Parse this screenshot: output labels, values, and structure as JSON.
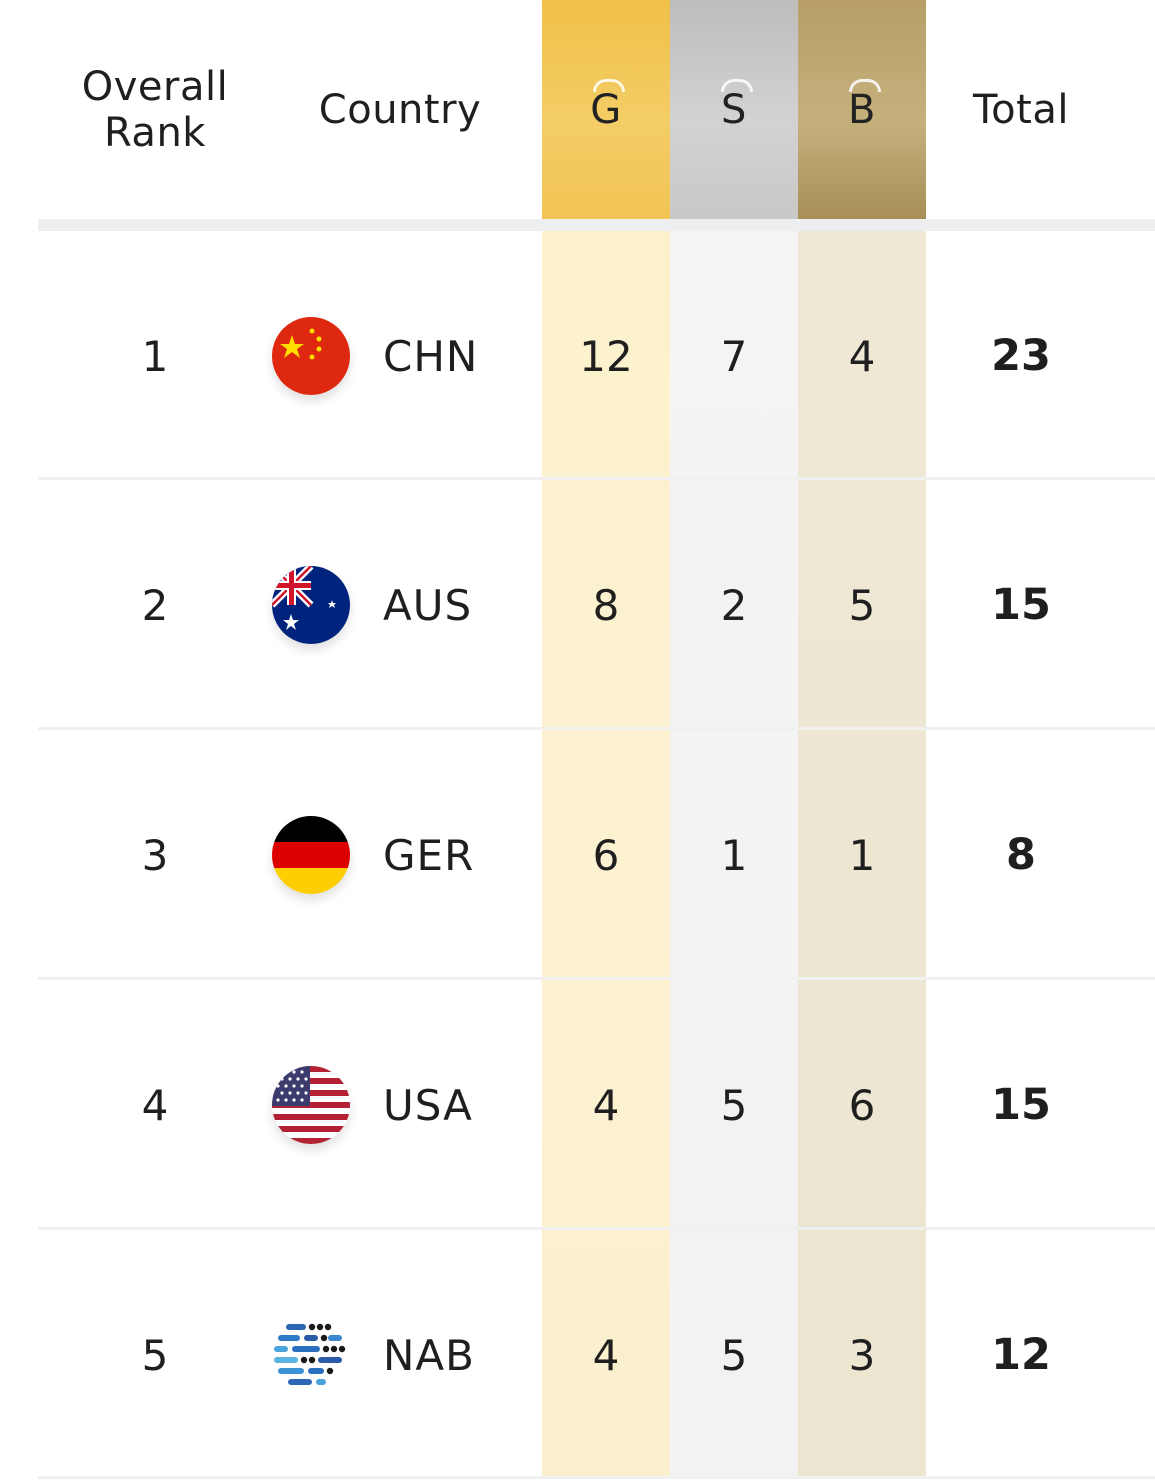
{
  "header": {
    "rank": "Overall Rank",
    "country": "Country",
    "gold": "G",
    "silver": "S",
    "bronze": "B",
    "total": "Total"
  },
  "rows": [
    {
      "rank": "1",
      "code": "CHN",
      "gold": "12",
      "silver": "7",
      "bronze": "4",
      "total": "23",
      "flag": "china-flag-icon"
    },
    {
      "rank": "2",
      "code": "AUS",
      "gold": "8",
      "silver": "2",
      "bronze": "5",
      "total": "15",
      "flag": "australia-flag-icon"
    },
    {
      "rank": "3",
      "code": "GER",
      "gold": "6",
      "silver": "1",
      "bronze": "1",
      "total": "8",
      "flag": "germany-flag-icon"
    },
    {
      "rank": "4",
      "code": "USA",
      "gold": "4",
      "silver": "5",
      "bronze": "6",
      "total": "15",
      "flag": "usa-flag-icon"
    },
    {
      "rank": "5",
      "code": "NAB",
      "gold": "4",
      "silver": "5",
      "bronze": "3",
      "total": "12",
      "flag": "nab-logo-icon"
    }
  ],
  "colors": {
    "gold": "#f2c455",
    "silver": "#c8c8c8",
    "bronze": "#b79f67"
  }
}
